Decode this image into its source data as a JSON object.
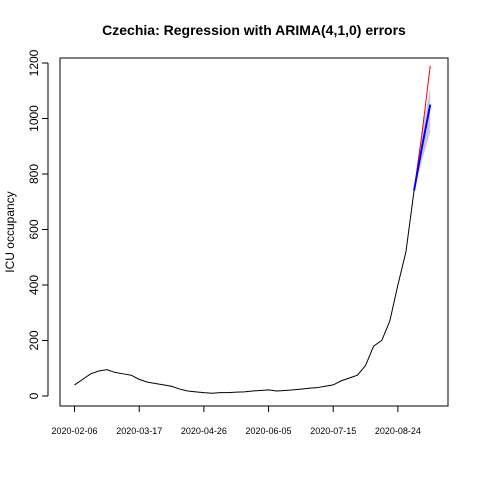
{
  "chart_data": {
    "type": "line",
    "title": "Czechia: Regression with ARIMA(4,1,0) errors",
    "ylabel": "ICU occupancy",
    "x": [
      "2020-02-06",
      "2020-02-11",
      "2020-02-16",
      "2020-02-21",
      "2020-02-26",
      "2020-03-02",
      "2020-03-07",
      "2020-03-12",
      "2020-03-17",
      "2020-03-22",
      "2020-03-27",
      "2020-04-01",
      "2020-04-06",
      "2020-04-11",
      "2020-04-16",
      "2020-04-21",
      "2020-04-26",
      "2020-05-01",
      "2020-05-06",
      "2020-05-11",
      "2020-05-16",
      "2020-05-21",
      "2020-05-26",
      "2020-05-31",
      "2020-06-05",
      "2020-06-10",
      "2020-06-15",
      "2020-06-20",
      "2020-06-25",
      "2020-06-30",
      "2020-07-05",
      "2020-07-10",
      "2020-07-15",
      "2020-07-20",
      "2020-07-25",
      "2020-07-30",
      "2020-08-04",
      "2020-08-09",
      "2020-08-14",
      "2020-08-19",
      "2020-08-24",
      "2020-08-29",
      "2020-09-03",
      "2020-09-08",
      "2020-09-13"
    ],
    "band": {
      "color": "#c8c8e6",
      "lower": [
        null,
        null,
        null,
        null,
        null,
        null,
        null,
        null,
        null,
        null,
        null,
        null,
        null,
        null,
        null,
        null,
        null,
        null,
        null,
        null,
        null,
        null,
        null,
        null,
        null,
        null,
        null,
        null,
        null,
        null,
        null,
        null,
        null,
        null,
        null,
        null,
        null,
        null,
        null,
        null,
        null,
        null,
        740,
        850,
        950
      ],
      "upper": [
        null,
        null,
        null,
        null,
        null,
        null,
        null,
        null,
        null,
        null,
        null,
        null,
        null,
        null,
        null,
        null,
        null,
        null,
        null,
        null,
        null,
        null,
        null,
        null,
        null,
        null,
        null,
        null,
        null,
        null,
        null,
        null,
        null,
        null,
        null,
        null,
        null,
        null,
        null,
        null,
        null,
        null,
        740,
        960,
        1110
      ]
    },
    "series": [
      {
        "color": "#000000",
        "values": [
          40,
          60,
          80,
          90,
          95,
          85,
          80,
          75,
          60,
          50,
          45,
          40,
          35,
          25,
          18,
          15,
          12,
          10,
          12,
          12,
          14,
          15,
          18,
          20,
          22,
          18,
          20,
          22,
          25,
          28,
          30,
          35,
          40,
          55,
          65,
          75,
          110,
          180,
          200,
          270,
          400,
          520,
          740,
          null,
          null
        ]
      },
      {
        "color": "#ff0000",
        "values": [
          null,
          null,
          null,
          null,
          null,
          null,
          null,
          null,
          null,
          null,
          null,
          null,
          null,
          null,
          null,
          null,
          null,
          null,
          null,
          null,
          null,
          null,
          null,
          null,
          null,
          null,
          null,
          null,
          null,
          null,
          null,
          null,
          null,
          null,
          null,
          null,
          null,
          null,
          null,
          null,
          null,
          null,
          740,
          950,
          1190
        ]
      },
      {
        "color": "#0000ff",
        "values": [
          null,
          null,
          null,
          null,
          null,
          null,
          null,
          null,
          null,
          null,
          null,
          null,
          null,
          null,
          null,
          null,
          null,
          null,
          null,
          null,
          null,
          null,
          null,
          null,
          null,
          null,
          null,
          null,
          null,
          null,
          null,
          null,
          null,
          null,
          null,
          null,
          null,
          null,
          null,
          null,
          null,
          null,
          740,
          900,
          1050
        ]
      }
    ],
    "xlim": [
      "2020-01-28",
      "2020-09-24"
    ],
    "xticks": [
      "2020-02-06",
      "2020-03-17",
      "2020-04-26",
      "2020-06-05",
      "2020-07-15",
      "2020-08-24"
    ],
    "ylim": [
      -36,
      1218
    ],
    "yticks": [
      0,
      200,
      400,
      600,
      800,
      1000,
      1200
    ]
  }
}
